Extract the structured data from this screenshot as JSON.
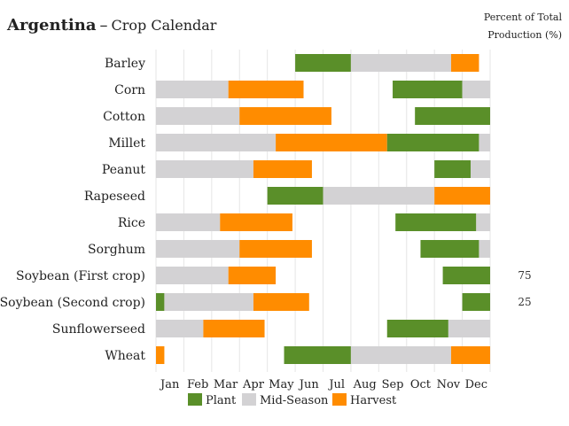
{
  "header": {
    "country": "Argentina",
    "separator": "–",
    "subtitle": "Crop Calendar"
  },
  "note": {
    "line1": "Percent of Total",
    "line2": "Production (%)"
  },
  "colors": {
    "plant": "#5a8f29",
    "mid_season": "#d3d2d4",
    "harvest": "#ff8c00",
    "grid": "#e6e6e6"
  },
  "chart_data": {
    "type": "bar",
    "orientation": "horizontal-gantt",
    "title": "Argentina – Crop Calendar",
    "xlabel": "",
    "ylabel": "",
    "x_unit": "month",
    "xlim": [
      0,
      12
    ],
    "months": [
      "Jan",
      "Feb",
      "Mar",
      "Apr",
      "May",
      "Jun",
      "Jul",
      "Aug",
      "Sep",
      "Oct",
      "Nov",
      "Dec"
    ],
    "grid": true,
    "legend": {
      "placement": "bottom",
      "entries": [
        {
          "name": "Plant",
          "color_key": "plant"
        },
        {
          "name": "Mid-Season",
          "color_key": "mid_season"
        },
        {
          "name": "Harvest",
          "color_key": "harvest"
        }
      ]
    },
    "crops": [
      {
        "name": "Barley",
        "pct": "",
        "segments": [
          {
            "phase": "plant",
            "start": 5.0,
            "end": 7.0
          },
          {
            "phase": "mid_season",
            "start": 7.0,
            "end": 10.6
          },
          {
            "phase": "harvest",
            "start": 10.6,
            "end": 11.6
          }
        ]
      },
      {
        "name": "Corn",
        "pct": "",
        "segments": [
          {
            "phase": "mid_season",
            "start": 0.0,
            "end": 2.6
          },
          {
            "phase": "harvest",
            "start": 2.6,
            "end": 5.3
          },
          {
            "phase": "plant",
            "start": 8.5,
            "end": 11.0
          },
          {
            "phase": "mid_season",
            "start": 11.0,
            "end": 12.0
          }
        ]
      },
      {
        "name": "Cotton",
        "pct": "",
        "segments": [
          {
            "phase": "mid_season",
            "start": 0.0,
            "end": 3.0
          },
          {
            "phase": "harvest",
            "start": 3.0,
            "end": 6.3
          },
          {
            "phase": "plant",
            "start": 9.3,
            "end": 12.0
          }
        ]
      },
      {
        "name": "Millet",
        "pct": "",
        "segments": [
          {
            "phase": "mid_season",
            "start": 0.0,
            "end": 4.3
          },
          {
            "phase": "harvest",
            "start": 4.3,
            "end": 8.3
          },
          {
            "phase": "plant",
            "start": 8.3,
            "end": 11.6
          },
          {
            "phase": "mid_season",
            "start": 11.6,
            "end": 12.0
          }
        ]
      },
      {
        "name": "Peanut",
        "pct": "",
        "segments": [
          {
            "phase": "mid_season",
            "start": 0.0,
            "end": 3.5
          },
          {
            "phase": "harvest",
            "start": 3.5,
            "end": 5.6
          },
          {
            "phase": "plant",
            "start": 10.0,
            "end": 11.3
          },
          {
            "phase": "mid_season",
            "start": 11.3,
            "end": 12.0
          }
        ]
      },
      {
        "name": "Rapeseed",
        "pct": "",
        "segments": [
          {
            "phase": "plant",
            "start": 4.0,
            "end": 6.0
          },
          {
            "phase": "mid_season",
            "start": 6.0,
            "end": 10.0
          },
          {
            "phase": "harvest",
            "start": 10.0,
            "end": 12.0
          }
        ]
      },
      {
        "name": "Rice",
        "pct": "",
        "segments": [
          {
            "phase": "mid_season",
            "start": 0.0,
            "end": 2.3
          },
          {
            "phase": "harvest",
            "start": 2.3,
            "end": 4.9
          },
          {
            "phase": "plant",
            "start": 8.6,
            "end": 11.5
          },
          {
            "phase": "mid_season",
            "start": 11.5,
            "end": 12.0
          }
        ]
      },
      {
        "name": "Sorghum",
        "pct": "",
        "segments": [
          {
            "phase": "mid_season",
            "start": 0.0,
            "end": 3.0
          },
          {
            "phase": "harvest",
            "start": 3.0,
            "end": 5.6
          },
          {
            "phase": "plant",
            "start": 9.5,
            "end": 11.6
          },
          {
            "phase": "mid_season",
            "start": 11.6,
            "end": 12.0
          }
        ]
      },
      {
        "name": "Soybean (First crop)",
        "pct": "75",
        "segments": [
          {
            "phase": "mid_season",
            "start": 0.0,
            "end": 2.6
          },
          {
            "phase": "harvest",
            "start": 2.6,
            "end": 4.3
          },
          {
            "phase": "plant",
            "start": 10.3,
            "end": 12.0
          }
        ]
      },
      {
        "name": "Soybean (Second crop)",
        "pct": "25",
        "segments": [
          {
            "phase": "plant",
            "start": 0.0,
            "end": 0.3
          },
          {
            "phase": "mid_season",
            "start": 0.3,
            "end": 3.5
          },
          {
            "phase": "harvest",
            "start": 3.5,
            "end": 5.5
          },
          {
            "phase": "plant",
            "start": 11.0,
            "end": 12.0
          }
        ]
      },
      {
        "name": "Sunflowerseed",
        "pct": "",
        "segments": [
          {
            "phase": "mid_season",
            "start": 0.0,
            "end": 1.7
          },
          {
            "phase": "harvest",
            "start": 1.7,
            "end": 3.9
          },
          {
            "phase": "plant",
            "start": 8.3,
            "end": 10.5
          },
          {
            "phase": "mid_season",
            "start": 10.5,
            "end": 12.0
          }
        ]
      },
      {
        "name": "Wheat",
        "pct": "",
        "segments": [
          {
            "phase": "harvest",
            "start": 0.0,
            "end": 0.3
          },
          {
            "phase": "plant",
            "start": 4.6,
            "end": 7.0
          },
          {
            "phase": "mid_season",
            "start": 7.0,
            "end": 10.6
          },
          {
            "phase": "harvest",
            "start": 10.6,
            "end": 12.0
          }
        ]
      }
    ]
  }
}
